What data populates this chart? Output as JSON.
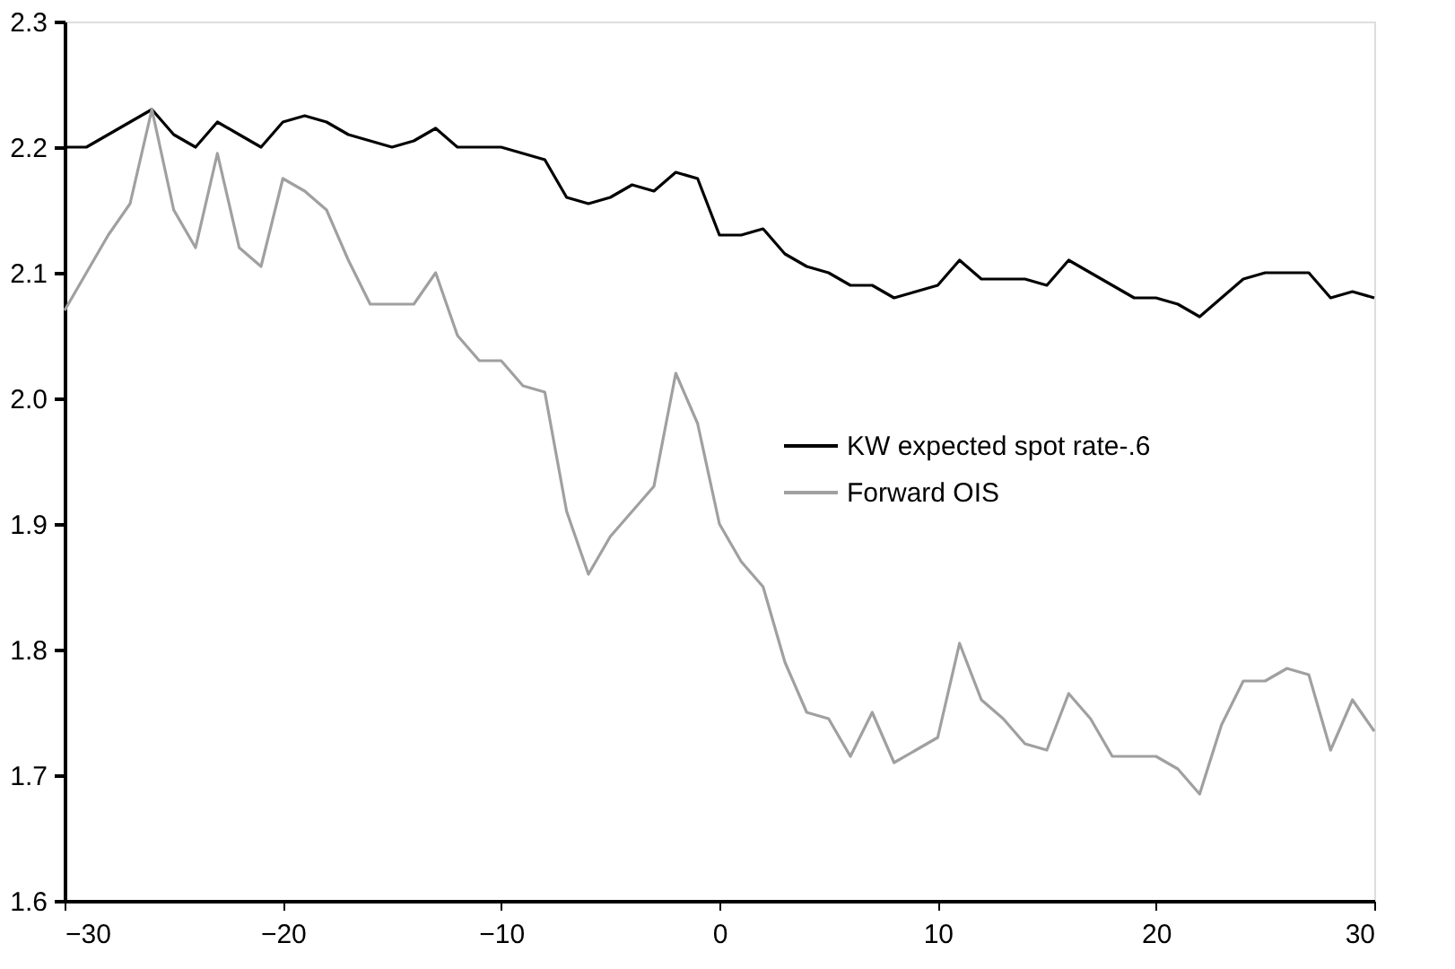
{
  "chart_data": {
    "type": "line",
    "x": [
      -30,
      -29,
      -28,
      -27,
      -26,
      -25,
      -24,
      -23,
      -22,
      -21,
      -20,
      -19,
      -18,
      -17,
      -16,
      -15,
      -14,
      -13,
      -12,
      -11,
      -10,
      -9,
      -8,
      -7,
      -6,
      -5,
      -4,
      -3,
      -2,
      -1,
      0,
      1,
      2,
      3,
      4,
      5,
      6,
      7,
      8,
      9,
      10,
      11,
      12,
      13,
      14,
      15,
      16,
      17,
      18,
      19,
      20,
      21,
      22,
      23,
      24,
      25,
      26,
      27,
      28,
      29,
      30
    ],
    "series": [
      {
        "name": "KW expected spot rate-.6",
        "color": "#000000",
        "values": [
          2.2,
          2.2,
          2.21,
          2.22,
          2.23,
          2.21,
          2.2,
          2.22,
          2.21,
          2.2,
          2.22,
          2.225,
          2.22,
          2.21,
          2.205,
          2.2,
          2.205,
          2.215,
          2.2,
          2.2,
          2.2,
          2.195,
          2.19,
          2.16,
          2.155,
          2.16,
          2.17,
          2.165,
          2.18,
          2.175,
          2.13,
          2.13,
          2.135,
          2.115,
          2.105,
          2.1,
          2.09,
          2.09,
          2.08,
          2.085,
          2.09,
          2.11,
          2.095,
          2.095,
          2.095,
          2.09,
          2.11,
          2.1,
          2.09,
          2.08,
          2.08,
          2.075,
          2.065,
          2.08,
          2.095,
          2.1,
          2.1,
          2.1,
          2.08,
          2.085,
          2.08
        ]
      },
      {
        "name": "Forward OIS",
        "color": "#a0a0a0",
        "values": [
          2.07,
          2.1,
          2.13,
          2.155,
          2.23,
          2.15,
          2.12,
          2.195,
          2.12,
          2.105,
          2.175,
          2.165,
          2.15,
          2.11,
          2.075,
          2.075,
          2.075,
          2.1,
          2.05,
          2.03,
          2.03,
          2.01,
          2.005,
          1.91,
          1.86,
          1.89,
          1.91,
          1.93,
          2.02,
          1.98,
          1.9,
          1.87,
          1.85,
          1.79,
          1.75,
          1.745,
          1.715,
          1.75,
          1.71,
          1.72,
          1.73,
          1.805,
          1.76,
          1.745,
          1.725,
          1.72,
          1.765,
          1.745,
          1.715,
          1.715,
          1.715,
          1.705,
          1.685,
          1.74,
          1.775,
          1.775,
          1.785,
          1.78,
          1.72,
          1.76,
          1.735
        ]
      }
    ],
    "xlim": [
      -30,
      30
    ],
    "xticks": [
      -30,
      -20,
      -10,
      0,
      10,
      20,
      30
    ],
    "ylim": [
      1.6,
      2.3
    ],
    "yticks": [
      1.6,
      1.7,
      1.8,
      1.9,
      {
        "value": 2.0,
        "label": "2.0"
      },
      2.1,
      2.2,
      2.3
    ],
    "legend": "right",
    "grid": false,
    "line_style": "solid",
    "marker": "none"
  }
}
